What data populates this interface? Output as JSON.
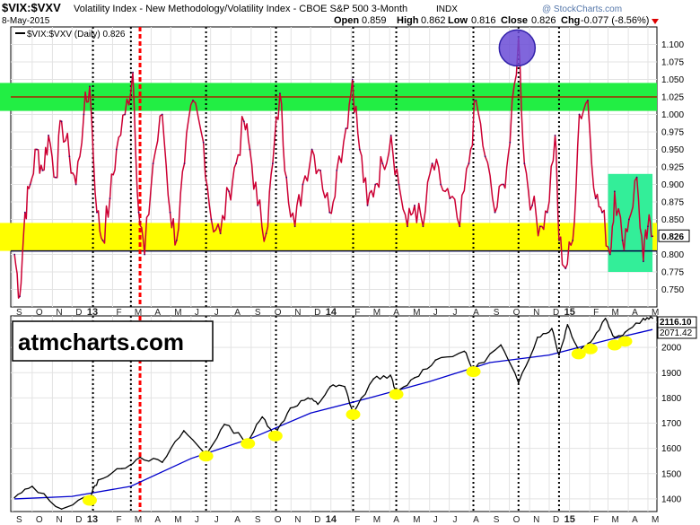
{
  "header": {
    "symbol": "$VIX:$VXV",
    "description": "Volatility Index - New Methodology/Volatility Index - CBOE S&P 500 3-Month",
    "exchange": "INDX",
    "date": "8-May-2015",
    "open_label": "Open",
    "open": "0.859",
    "high_label": "High",
    "high": "0.862",
    "low_label": "Low",
    "low": "0.816",
    "close_label": "Close",
    "close": "0.826",
    "chg_label": "Chg",
    "chg": "-0.077 (-8.56%)",
    "watermark": "@ StockCharts.com"
  },
  "legend": {
    "text": "$VIX:$VXV (Daily) 0.826"
  },
  "brand": {
    "text": "atmcharts.com"
  },
  "colors": {
    "ratio_line": "#cc0033",
    "index_line": "#000000",
    "moving_avg": "#0000cc",
    "green_band": "#22ee44",
    "yellow_band": "#ffff00",
    "teal_box": "#33ee99",
    "highlight_circle": "#6a4bd6",
    "marker": "#ffff00",
    "dashed_red": "#ff0000"
  },
  "chart_data": [
    {
      "type": "line",
      "title": "$VIX:$VXV (Daily)",
      "ylim": [
        0.725,
        1.125
      ],
      "y_ticks": [
        0.75,
        0.775,
        0.8,
        0.825,
        0.85,
        0.875,
        0.9,
        0.925,
        0.95,
        0.975,
        1.0,
        1.025,
        1.05,
        1.075,
        1.1
      ],
      "last_value": 0.826,
      "last_label": "0.826",
      "horizontal_lines": [
        1.025,
        0.805
      ],
      "bands": [
        {
          "color": "green",
          "from": 1.005,
          "to": 1.045
        },
        {
          "color": "yellow",
          "from": 0.805,
          "to": 0.845
        }
      ],
      "highlight_box": {
        "x_from": "2015-03-01",
        "x_to": "2015-05-08",
        "y_from": 0.775,
        "y_to": 0.915
      },
      "highlight_circle": {
        "x": "2014-10-13",
        "y": 1.095
      },
      "series": [
        {
          "x": [
            "2012-09-04",
            "2012-09-12",
            "2012-09-20",
            "2012-09-28",
            "2012-10-08",
            "2012-10-17",
            "2012-10-26",
            "2012-11-06",
            "2012-11-15",
            "2012-11-27",
            "2012-12-07",
            "2012-12-19",
            "2012-12-28",
            "2013-01-08",
            "2013-01-17",
            "2013-01-28",
            "2013-02-07",
            "2013-02-20",
            "2013-03-04",
            "2013-03-13",
            "2013-03-22",
            "2013-04-04",
            "2013-04-18",
            "2013-04-30",
            "2013-05-10",
            "2013-05-22",
            "2013-06-04",
            "2013-06-20",
            "2013-07-02",
            "2013-07-16",
            "2013-07-29",
            "2013-08-09",
            "2013-08-21",
            "2013-08-30",
            "2013-09-11",
            "2013-09-24",
            "2013-10-04",
            "2013-10-15",
            "2013-10-25",
            "2013-11-07",
            "2013-11-19",
            "2013-12-03",
            "2013-12-16",
            "2013-12-30",
            "2014-01-10",
            "2014-01-24",
            "2014-02-03",
            "2014-02-14",
            "2014-02-26",
            "2014-03-10",
            "2014-03-21",
            "2014-04-03",
            "2014-04-15",
            "2014-04-28",
            "2014-05-09",
            "2014-05-22",
            "2014-06-05",
            "2014-06-18",
            "2014-07-02",
            "2014-07-17",
            "2014-07-31",
            "2014-08-11",
            "2014-08-25",
            "2014-09-09",
            "2014-09-22",
            "2014-10-02",
            "2014-10-15",
            "2014-10-24",
            "2014-11-05",
            "2014-11-17",
            "2014-11-28",
            "2014-12-10",
            "2014-12-16",
            "2014-12-26",
            "2015-01-06",
            "2015-01-16",
            "2015-01-29",
            "2015-02-10",
            "2015-02-20",
            "2015-03-04",
            "2015-03-11",
            "2015-03-23",
            "2015-04-02",
            "2015-04-14",
            "2015-04-24",
            "2015-05-01",
            "2015-05-08"
          ],
          "y": [
            0.8,
            0.74,
            0.86,
            0.9,
            0.95,
            0.92,
            0.97,
            0.91,
            0.99,
            0.94,
            0.9,
            1.0,
            1.04,
            0.86,
            0.82,
            0.88,
            0.95,
            1.0,
            1.06,
            0.86,
            0.8,
            0.93,
            1.0,
            0.86,
            0.82,
            0.93,
            1.02,
            0.96,
            0.85,
            0.83,
            0.89,
            0.93,
            0.99,
            0.95,
            0.87,
            0.83,
            0.93,
            1.03,
            0.91,
            0.84,
            0.9,
            0.95,
            0.92,
            0.86,
            0.92,
            0.98,
            1.05,
            0.95,
            0.87,
            0.9,
            0.93,
            0.97,
            0.9,
            0.84,
            0.87,
            0.84,
            0.93,
            0.9,
            0.88,
            0.84,
            0.93,
            1.02,
            0.94,
            0.86,
            0.9,
            0.96,
            1.11,
            0.93,
            0.87,
            0.84,
            0.86,
            0.97,
            0.82,
            0.78,
            0.82,
            1.0,
            1.02,
            0.88,
            0.86,
            0.8,
            0.89,
            0.82,
            0.85,
            0.91,
            0.79,
            0.84,
            0.826
          ]
        }
      ]
    },
    {
      "type": "line",
      "title": "S&P 500",
      "ylim": [
        1350,
        2125
      ],
      "y_ticks": [
        1400,
        1500,
        1600,
        1700,
        1800,
        1900,
        2000,
        2100
      ],
      "last_labels": [
        "2116.10",
        "2071.42"
      ],
      "series": [
        {
          "name": "Price",
          "x": [
            "2012-09-04",
            "2012-10-01",
            "2012-11-15",
            "2012-12-28",
            "2013-01-10",
            "2013-02-15",
            "2013-03-15",
            "2013-04-18",
            "2013-05-21",
            "2013-06-24",
            "2013-07-22",
            "2013-08-27",
            "2013-09-18",
            "2013-10-08",
            "2013-10-31",
            "2013-11-27",
            "2013-12-12",
            "2013-12-31",
            "2014-01-22",
            "2014-02-04",
            "2014-03-07",
            "2014-04-02",
            "2014-04-11",
            "2014-05-09",
            "2014-06-10",
            "2014-07-24",
            "2014-08-07",
            "2014-09-18",
            "2014-10-15",
            "2014-11-13",
            "2014-12-05",
            "2014-12-16",
            "2014-12-29",
            "2015-01-15",
            "2015-02-02",
            "2015-02-25",
            "2015-03-11",
            "2015-03-27",
            "2015-04-24",
            "2015-05-08"
          ],
          "y": [
            1405,
            1450,
            1360,
            1410,
            1475,
            1520,
            1565,
            1545,
            1670,
            1575,
            1695,
            1630,
            1725,
            1655,
            1760,
            1800,
            1775,
            1845,
            1845,
            1740,
            1875,
            1890,
            1815,
            1880,
            1950,
            1985,
            1910,
            2010,
            1860,
            2040,
            2075,
            1970,
            2090,
            1990,
            2020,
            2115,
            2040,
            2060,
            2115,
            2116
          ]
        },
        {
          "name": "Moving Average",
          "x": [
            "2012-09-04",
            "2012-12-01",
            "2013-03-01",
            "2013-06-01",
            "2013-09-01",
            "2013-12-01",
            "2014-03-01",
            "2014-06-01",
            "2014-09-01",
            "2014-12-01",
            "2015-03-01",
            "2015-05-08"
          ],
          "y": [
            1400,
            1410,
            1450,
            1560,
            1640,
            1740,
            1800,
            1865,
            1940,
            1970,
            2030,
            2071
          ]
        }
      ]
    }
  ],
  "x_axis": {
    "top_labels": [
      "S",
      "O",
      "N",
      "D",
      "13",
      "F",
      "M",
      "A",
      "M",
      "J",
      "J",
      "A",
      "S",
      "O",
      "N",
      "D",
      "14",
      "F",
      "M",
      "A",
      "M",
      "J",
      "J",
      "A",
      "S",
      "O",
      "N",
      "D",
      "15",
      "F",
      "M",
      "A",
      "M"
    ],
    "bottom_labels": [
      "S",
      "O",
      "N",
      "D",
      "13",
      "F",
      "M",
      "A",
      "M",
      "J",
      "J",
      "A",
      "S",
      "O",
      "N",
      "D",
      "14",
      "F",
      "M",
      "A",
      "M",
      "J",
      "J",
      "A",
      "S",
      "O",
      "N",
      "D",
      "15",
      "F",
      "M",
      "A",
      "M"
    ]
  },
  "annotations": {
    "dotted_verticals": [
      "2013-01-02",
      "2013-03-01",
      "2013-06-24",
      "2013-10-09",
      "2014-02-04",
      "2014-04-11",
      "2014-08-07",
      "2014-10-15",
      "2014-12-16"
    ],
    "dashed_red_vertical": "2013-03-15",
    "yellow_markers": [
      {
        "x": "2012-12-28",
        "y": 1405
      },
      {
        "x": "2013-06-24",
        "y": 1580
      },
      {
        "x": "2013-08-27",
        "y": 1630
      },
      {
        "x": "2013-10-08",
        "y": 1660
      },
      {
        "x": "2014-02-04",
        "y": 1745
      },
      {
        "x": "2014-04-11",
        "y": 1825
      },
      {
        "x": "2014-08-07",
        "y": 1915
      },
      {
        "x": "2015-01-15",
        "y": 1985
      },
      {
        "x": "2015-02-02",
        "y": 2005
      },
      {
        "x": "2015-03-11",
        "y": 2020
      },
      {
        "x": "2015-03-27",
        "y": 2035
      }
    ]
  }
}
